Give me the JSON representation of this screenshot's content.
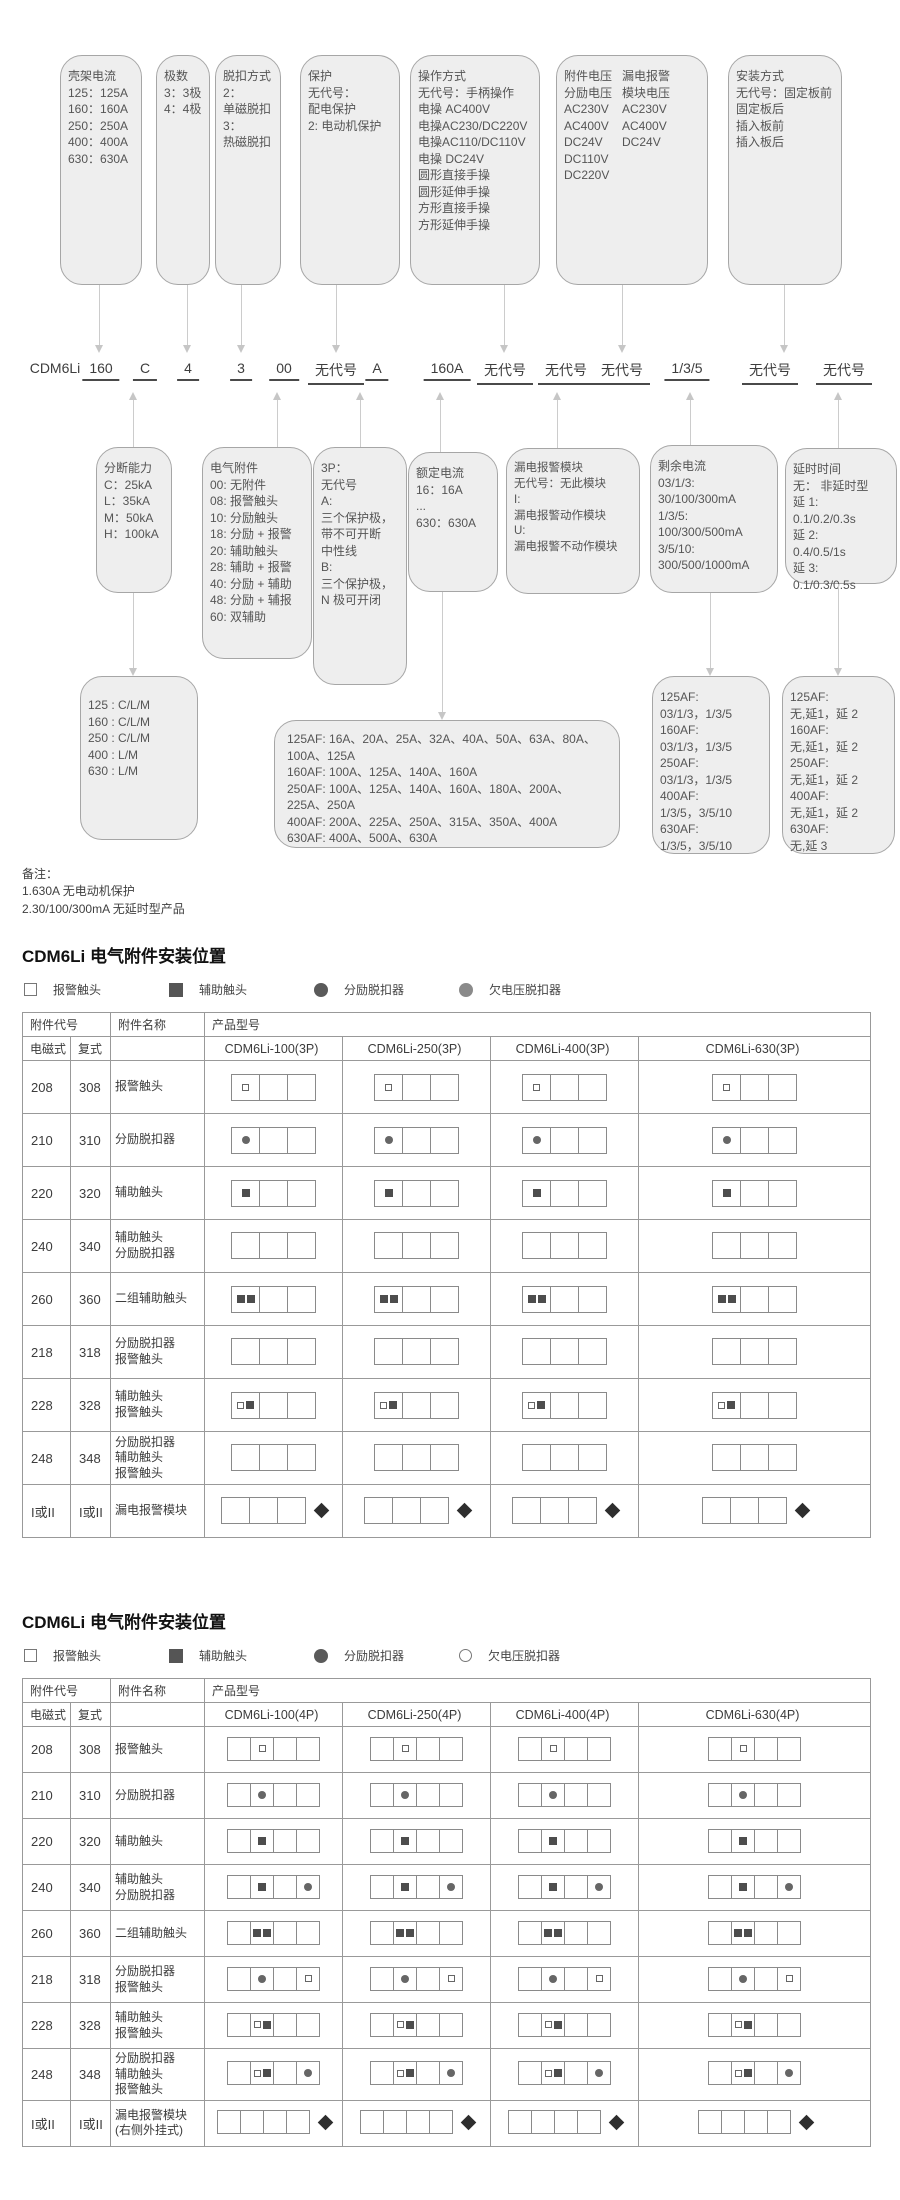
{
  "colors": {
    "box_fill": "#eeeeee",
    "box_border": "#a6a6a6",
    "table_border": "#999999",
    "diamond": "#2e2e2e"
  },
  "diagram": {
    "code_parts": [
      "CDM6Li",
      "160",
      "C",
      "4",
      "3",
      "00",
      "无代号",
      "A",
      "160A",
      "无代号",
      "无代号",
      "无代号",
      "1/3/5",
      "无代号",
      "无代号"
    ],
    "top_boxes": [
      {
        "text": "壳架电流\n125：125A\n160：160A\n250：250A\n400：400A\n630：630A"
      },
      {
        "text": "极数\n3：3极\n4：4极"
      },
      {
        "text": "脱扣方式\n2：\n单磁脱扣\n3：\n热磁脱扣"
      },
      {
        "text": "保护\n无代号：\n配电保护\n2: 电动机保护"
      },
      {
        "text": "操作方式\n无代号：手柄操作\n电操 AC400V\n电操AC230/DC220V\n电操AC110/DC110V\n电操 DC24V\n圆形直接手操\n圆形延伸手操\n方形直接手操\n方形延伸手操"
      },
      {
        "text": "附件电压\n分励电压\nAC230V\nAC400V\nDC24V\nDC110V\nDC220V",
        "text2": "漏电报警\n模块电压\nAC230V\nAC400V\nDC24V"
      },
      {
        "text": "安装方式\n无代号：固定板前\n固定板后\n插入板前\n插入板后"
      }
    ],
    "mid_boxes": [
      {
        "text": "分断能力\nC：25kA\nL：35kA\nM：50kA\nH：100kA"
      },
      {
        "text": "电气附件\n00: 无附件\n08: 报警触头\n10: 分励触头\n18: 分励 + 报警\n20: 辅助触头\n28: 辅助 + 报警\n40: 分励 + 辅助\n48: 分励 + 辅报\n60: 双辅助"
      },
      {
        "text": "3P：\n无代号\nA:\n三个保护极，\n带不可开断\n中性线\nB:\n三个保护极，\nN 极可开闭"
      },
      {
        "text": "额定电流\n16：16A\n...\n630：630A"
      },
      {
        "text": "漏电报警模块\n无代号：无此模块\nI:\n漏电报警动作模块\nU:\n漏电报警不动作模块"
      },
      {
        "text": "剩余电流\n03/1/3:\n30/100/300mA\n1/3/5:\n100/300/500mA\n3/5/10:\n300/500/1000mA"
      },
      {
        "text": "延时时间\n无： 非延时型\n延 1:\n0.1/0.2/0.3s\n延 2:\n 0.4/0.5/1s\n延 3:\n0.1/0.3/0.5s"
      }
    ],
    "sub_boxes": [
      {
        "text": "125 : C/L/M\n160 : C/L/M\n250 : C/L/M\n400 : L/M\n630 : L/M"
      },
      {
        "text": "125AF: 16A、20A、25A、32A、40A、50A、63A、80A、100A、125A\n160AF: 100A、125A、140A、160A\n250AF: 100A、125A、140A、160A、180A、200A、225A、250A\n400AF: 200A、225A、250A、315A、350A、400A\n630AF: 400A、500A、630A"
      },
      {
        "text": "125AF:\n 03/1/3，1/3/5\n160AF:\n 03/1/3，1/3/5\n250AF:\n 03/1/3，1/3/5\n400AF:\n1/3/5，3/5/10\n630AF:\n1/3/5，3/5/10"
      },
      {
        "text": "125AF:\n无,延1，延 2\n160AF:\n无,延1，延 2\n250AF:\n无,延1，延 2\n400AF:\n无,延1，延 2\n630AF:\n无,延 3"
      }
    ],
    "notes": "备注：\n1.630A 无电动机保护\n2.30/100/300mA 无延时型产品"
  },
  "tables": [
    {
      "title": "CDM6Li 电气附件安装位置",
      "legend": [
        {
          "icon": "alarm",
          "label": "报警触头"
        },
        {
          "icon": "aux",
          "label": "辅助触头"
        },
        {
          "icon": "shunt",
          "label": "分励脱扣器"
        },
        {
          "icon": "uvf",
          "label": "欠电压脱扣器"
        }
      ],
      "headers": {
        "code": "附件代号",
        "name": "附件名称",
        "product": "产品型号",
        "em": "电磁式",
        "fu": "复式"
      },
      "models": [
        "CDM6Li-100(3P)",
        "CDM6Li-250(3P)",
        "CDM6Li-400(3P)",
        "CDM6Li-630(3P)"
      ],
      "compartments": 3,
      "rows": [
        {
          "em": "208",
          "fu": "308",
          "name": "报警触头",
          "cells": [
            [
              "alarm"
            ],
            [],
            []
          ],
          "diamond": false
        },
        {
          "em": "210",
          "fu": "310",
          "name": "分励脱扣器",
          "cells": [
            [
              "shunt"
            ],
            [],
            []
          ],
          "diamond": false
        },
        {
          "em": "220",
          "fu": "320",
          "name": "辅助触头",
          "cells": [
            [
              "aux"
            ],
            [],
            []
          ],
          "diamond": false
        },
        {
          "em": "240",
          "fu": "340",
          "name": "辅助触头\n分励脱扣器",
          "cells": [
            [],
            [],
            []
          ],
          "diamond": false
        },
        {
          "em": "260",
          "fu": "360",
          "name": "二组辅助触头",
          "cells": [
            [
              "aux",
              "aux"
            ],
            [],
            []
          ],
          "diamond": false
        },
        {
          "em": "218",
          "fu": "318",
          "name": "分励脱扣器\n报警触头",
          "cells": [
            [],
            [],
            []
          ],
          "diamond": false
        },
        {
          "em": "228",
          "fu": "328",
          "name": "辅助触头\n报警触头",
          "cells": [
            [
              "alarm",
              "aux"
            ],
            [],
            []
          ],
          "diamond": false
        },
        {
          "em": "248",
          "fu": "348",
          "name": "分励脱扣器\n辅助触头\n报警触头",
          "cells": [
            [],
            [],
            []
          ],
          "diamond": false
        },
        {
          "em": "I或II",
          "fu": "I或II",
          "name": "漏电报警模块",
          "cells": [
            [],
            [],
            []
          ],
          "diamond": true
        }
      ]
    },
    {
      "title": "CDM6Li 电气附件安装位置",
      "legend": [
        {
          "icon": "alarm",
          "label": "报警触头"
        },
        {
          "icon": "aux",
          "label": "辅助触头"
        },
        {
          "icon": "shunt",
          "label": "分励脱扣器"
        },
        {
          "icon": "uvo",
          "label": "欠电压脱扣器"
        }
      ],
      "headers": {
        "code": "附件代号",
        "name": "附件名称",
        "product": "产品型号",
        "em": "电磁式",
        "fu": "复式"
      },
      "models": [
        "CDM6Li-100(4P)",
        "CDM6Li-250(4P)",
        "CDM6Li-400(4P)",
        "CDM6Li-630(4P)"
      ],
      "compartments": 4,
      "rows": [
        {
          "em": "208",
          "fu": "308",
          "name": "报警触头",
          "cells": [
            [],
            [
              "alarm"
            ],
            [],
            []
          ],
          "diamond": false
        },
        {
          "em": "210",
          "fu": "310",
          "name": "分励脱扣器",
          "cells": [
            [],
            [
              "shunt"
            ],
            [],
            []
          ],
          "diamond": false
        },
        {
          "em": "220",
          "fu": "320",
          "name": "辅助触头",
          "cells": [
            [],
            [
              "aux"
            ],
            [],
            []
          ],
          "diamond": false
        },
        {
          "em": "240",
          "fu": "340",
          "name": "辅助触头\n分励脱扣器",
          "cells": [
            [],
            [
              "aux"
            ],
            [],
            [
              "shunt"
            ]
          ],
          "diamond": false
        },
        {
          "em": "260",
          "fu": "360",
          "name": "二组辅助触头",
          "cells": [
            [],
            [
              "aux",
              "aux"
            ],
            [],
            []
          ],
          "diamond": false
        },
        {
          "em": "218",
          "fu": "318",
          "name": "分励脱扣器\n报警触头",
          "cells": [
            [],
            [
              "shunt"
            ],
            [],
            [
              "alarm"
            ]
          ],
          "diamond": false
        },
        {
          "em": "228",
          "fu": "328",
          "name": "辅助触头\n报警触头",
          "cells": [
            [],
            [
              "alarm",
              "aux"
            ],
            [],
            []
          ],
          "diamond": false
        },
        {
          "em": "248",
          "fu": "348",
          "name": "分励脱扣器\n辅助触头\n报警触头",
          "cells": [
            [],
            [
              "alarm",
              "aux"
            ],
            [],
            [
              "shunt"
            ]
          ],
          "diamond": false
        },
        {
          "em": "I或II",
          "fu": "I或II",
          "name": "漏电报警模块\n(右侧外挂式)",
          "cells": [
            [],
            [],
            [],
            []
          ],
          "diamond": true
        }
      ]
    }
  ]
}
